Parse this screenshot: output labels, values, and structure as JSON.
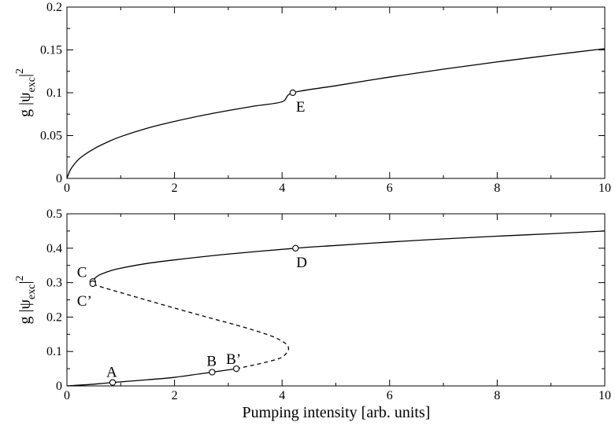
{
  "chart_data": [
    {
      "type": "line",
      "title": "",
      "xlabel": "",
      "ylabel_main": "g |ψ",
      "ylabel_sub": "exc",
      "ylabel_tail": "|",
      "ylabel_sup": "2",
      "xlim": [
        0,
        10
      ],
      "ylim": [
        0,
        0.2
      ],
      "xticks": [
        0,
        2,
        4,
        6,
        8,
        10
      ],
      "xtick_labels": [
        "0",
        "2",
        "4",
        "6",
        "8",
        "10"
      ],
      "yticks": [
        0,
        0.05,
        0.1,
        0.15,
        0.2
      ],
      "ytick_labels": [
        "0",
        "0.05",
        "0.1",
        "0.15",
        "0.2"
      ],
      "grid": false,
      "series": [
        {
          "style": "solid",
          "x": [
            0,
            0.05,
            0.1,
            0.2,
            0.3,
            0.5,
            0.75,
            1,
            1.5,
            2,
            2.5,
            3,
            3.5,
            4,
            4.2,
            5,
            6,
            7,
            8,
            9,
            10
          ],
          "y": [
            0,
            0.0082,
            0.0135,
            0.0212,
            0.0265,
            0.0345,
            0.0423,
            0.0488,
            0.0587,
            0.0665,
            0.0733,
            0.0792,
            0.0846,
            0.0895,
            0.1,
            0.1082,
            0.1183,
            0.1275,
            0.136,
            0.1439,
            0.1515
          ]
        }
      ],
      "points": [
        {
          "label": "E",
          "x": 4.2,
          "y": 0.1
        }
      ]
    },
    {
      "type": "line",
      "title": "",
      "xlabel": "Pumping intensity  [arb. units]",
      "ylabel_main": "g |ψ",
      "ylabel_sub": "exc",
      "ylabel_tail": "|",
      "ylabel_sup": "2",
      "xlim": [
        0,
        10
      ],
      "ylim": [
        0,
        0.5
      ],
      "xticks": [
        0,
        2,
        4,
        6,
        8,
        10
      ],
      "xtick_labels": [
        "0",
        "2",
        "4",
        "6",
        "8",
        "10"
      ],
      "yticks": [
        0,
        0.1,
        0.2,
        0.3,
        0.4,
        0.5
      ],
      "ytick_labels": [
        "0",
        "0.1",
        "0.2",
        "0.3",
        "0.4",
        "0.5"
      ],
      "grid": false,
      "series": [
        {
          "style": "solid",
          "x": [
            0,
            0.5,
            0.85,
            1.5,
            2,
            2.7,
            3.15
          ],
          "y": [
            0,
            0.005,
            0.01,
            0.018,
            0.025,
            0.04,
            0.05
          ]
        },
        {
          "style": "dashed",
          "x": [
            3.15,
            3.6,
            3.95,
            4.08,
            4.12,
            4.05,
            3.8,
            3.3,
            2.6,
            1.8,
            1.2,
            0.8,
            0.55,
            0.48
          ],
          "y": [
            0.05,
            0.065,
            0.08,
            0.095,
            0.11,
            0.125,
            0.145,
            0.17,
            0.2,
            0.235,
            0.262,
            0.28,
            0.292,
            0.297
          ]
        },
        {
          "style": "solid",
          "x": [
            0.48,
            0.5,
            0.6,
            0.8,
            1,
            1.5,
            2,
            3,
            4.25,
            5,
            6,
            7,
            8,
            9,
            10
          ],
          "y": [
            0.303,
            0.31,
            0.322,
            0.334,
            0.342,
            0.356,
            0.366,
            0.383,
            0.4,
            0.408,
            0.418,
            0.427,
            0.435,
            0.442,
            0.45
          ]
        }
      ],
      "points": [
        {
          "label": "A",
          "x": 0.85,
          "y": 0.01
        },
        {
          "label": "B",
          "x": 2.7,
          "y": 0.04
        },
        {
          "label": "B’",
          "x": 3.15,
          "y": 0.05
        },
        {
          "label": "C",
          "x": 0.48,
          "y": 0.303
        },
        {
          "label": "C’",
          "x": 0.48,
          "y": 0.297
        },
        {
          "label": "D",
          "x": 4.25,
          "y": 0.4
        }
      ]
    }
  ]
}
